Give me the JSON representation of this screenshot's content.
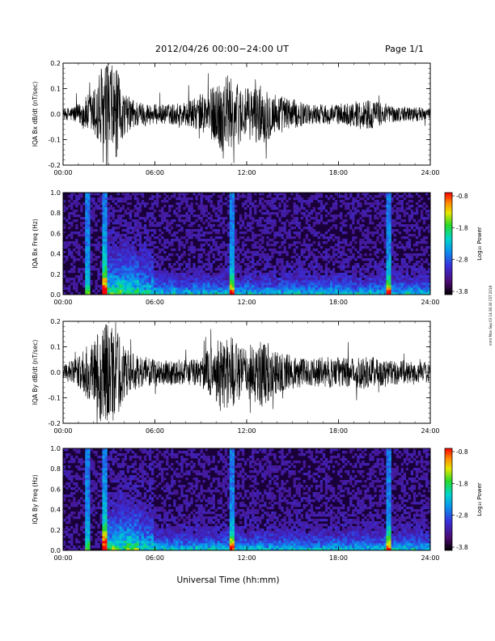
{
  "header": {
    "title": "2012/04/26  00:00−24:00 UT",
    "page": "Page 1/1"
  },
  "footer": {
    "xlabel": "Universal Time (hh:mm)"
  },
  "side_stamp": "mmt Mon Sep 03 14:36:30 CST 2018",
  "colorbar": {
    "label": "Log₁₀ Power",
    "ticks": [
      "-0.8",
      "-1.8",
      "-2.8",
      "-3.8"
    ]
  },
  "x_ticks": [
    "00:00",
    "06:00",
    "12:00",
    "18:00",
    "24:00"
  ],
  "colors": {
    "spectrogram_background": "#1a0038",
    "waveform": "#000000"
  },
  "chart_data": [
    {
      "type": "line",
      "ylabel": "IQA Bx dB/dt (nT/sec)",
      "ylim": [
        -0.2,
        0.2
      ],
      "yticks": [
        "0.2",
        "0.1",
        "0.0",
        "-0.1",
        "-0.2"
      ],
      "xlim_hours": [
        0,
        24
      ],
      "x_unit": "hours UT",
      "series": [
        {
          "x": [
            0,
            1,
            2,
            2.5,
            3,
            3.5,
            4,
            5,
            6,
            7,
            8,
            9,
            10,
            10.5,
            11,
            11.5,
            12,
            13,
            14,
            15,
            16,
            17,
            18,
            19,
            20,
            21,
            22,
            23,
            24
          ],
          "amplitude": [
            0.02,
            0.04,
            0.1,
            0.2,
            0.2,
            0.18,
            0.08,
            0.05,
            0.04,
            0.04,
            0.05,
            0.07,
            0.12,
            0.18,
            0.14,
            0.12,
            0.1,
            0.12,
            0.08,
            0.06,
            0.04,
            0.04,
            0.04,
            0.05,
            0.06,
            0.04,
            0.03,
            0.03,
            0.02
          ]
        }
      ]
    },
    {
      "type": "heatmap",
      "ylabel": "IQA Bx Freq (Hz)",
      "ylim": [
        0.0,
        1.0
      ],
      "yticks": [
        "1.0",
        "0.8",
        "0.6",
        "0.4",
        "0.2",
        "0.0"
      ],
      "xlim_hours": [
        0,
        24
      ],
      "colorbar_range": [
        -3.8,
        -0.8
      ],
      "bright_vertical_stripes_hours": [
        1.6,
        2.7,
        11.0,
        21.3
      ],
      "enhanced_low_freq_band_hours": [
        2.5,
        24
      ]
    },
    {
      "type": "line",
      "ylabel": "IQA By dB/dt (nT/sec)",
      "ylim": [
        -0.2,
        0.2
      ],
      "yticks": [
        "0.2",
        "0.1",
        "0.0",
        "-0.1",
        "-0.2"
      ],
      "xlim_hours": [
        0,
        24
      ],
      "x_unit": "hours UT",
      "series": [
        {
          "x": [
            0,
            1,
            2,
            2.5,
            3,
            3.5,
            4,
            5,
            6,
            7,
            8,
            9,
            10,
            10.5,
            11,
            11.5,
            12,
            13,
            14,
            15,
            16,
            17,
            18,
            19,
            20,
            21,
            22,
            23,
            24
          ],
          "amplitude": [
            0.03,
            0.06,
            0.14,
            0.2,
            0.2,
            0.2,
            0.1,
            0.06,
            0.05,
            0.05,
            0.05,
            0.06,
            0.12,
            0.18,
            0.15,
            0.1,
            0.1,
            0.14,
            0.08,
            0.07,
            0.05,
            0.06,
            0.06,
            0.06,
            0.07,
            0.05,
            0.05,
            0.04,
            0.04
          ]
        }
      ]
    },
    {
      "type": "heatmap",
      "ylabel": "IQA By Freq (Hz)",
      "ylim": [
        0.0,
        1.0
      ],
      "yticks": [
        "1.0",
        "0.8",
        "0.6",
        "0.4",
        "0.2",
        "0.0"
      ],
      "xlim_hours": [
        0,
        24
      ],
      "colorbar_range": [
        -3.8,
        -0.8
      ],
      "bright_vertical_stripes_hours": [
        1.6,
        2.7,
        11.0,
        21.3
      ],
      "enhanced_low_freq_band_hours": [
        2.5,
        24
      ]
    }
  ]
}
